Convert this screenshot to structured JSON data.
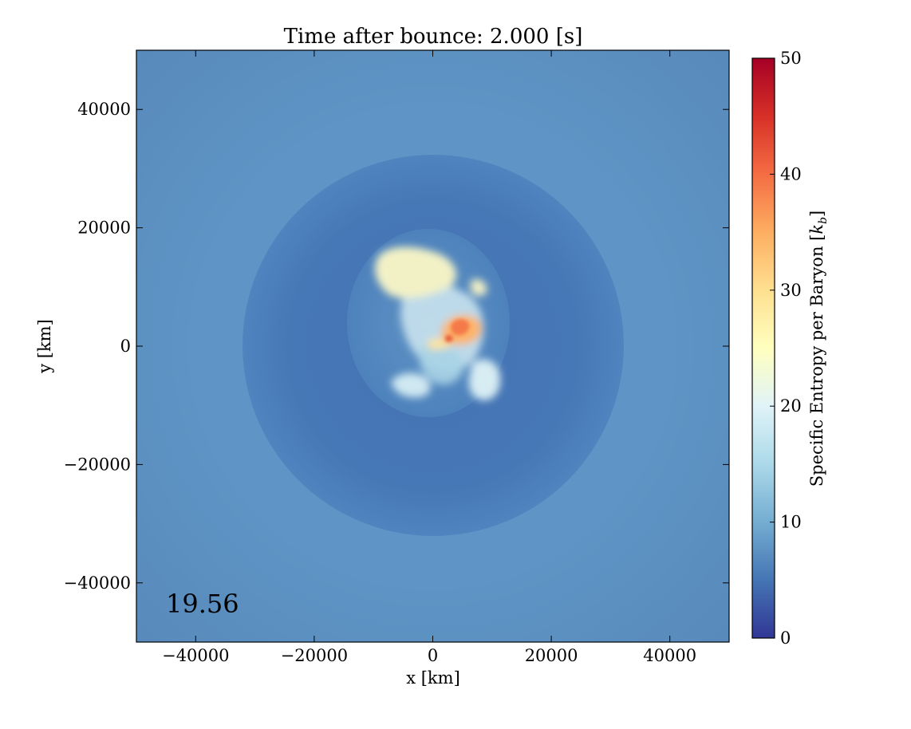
{
  "chart_data": {
    "type": "heatmap",
    "title": "Time after bounce: 2.000 [s]",
    "xlabel": "x [km]",
    "ylabel": "y [km]",
    "xlim": [
      -50000,
      50000
    ],
    "ylim": [
      -50000,
      50000
    ],
    "xticks": [
      -40000,
      -20000,
      0,
      20000,
      40000
    ],
    "yticks": [
      -40000,
      -20000,
      0,
      20000,
      40000
    ],
    "xtick_labels": [
      "−40000",
      "−20000",
      "0",
      "20000",
      "40000"
    ],
    "ytick_labels": [
      "−40000",
      "−20000",
      "0",
      "20000",
      "40000"
    ],
    "annotation": "19.56",
    "grid": false,
    "colorbar": {
      "label": "Specific Entropy per Baryon [k_b]",
      "label_main": "Specific Entropy per Baryon [",
      "label_symbol": "k",
      "label_subscript": "b",
      "label_close": "]",
      "range": [
        0,
        50
      ],
      "ticks": [
        0,
        10,
        20,
        30,
        40,
        50
      ],
      "tick_labels": [
        "0",
        "10",
        "20",
        "30",
        "40",
        "50"
      ],
      "colormap": "RdYlBu_r",
      "stops": [
        "#313695",
        "#4575b4",
        "#74add1",
        "#abd9e9",
        "#e0f3f8",
        "#ffffbf",
        "#fee090",
        "#fdae61",
        "#f46d43",
        "#d73027",
        "#a50026"
      ]
    },
    "field_features": [
      {
        "name": "outer ambient",
        "radius_km": 50000,
        "entropy": 8.5
      },
      {
        "name": "shell",
        "radius_km": 32000,
        "entropy": 6.5
      },
      {
        "name": "inner cavity",
        "center_km": [
          -2000,
          2000
        ],
        "radius_km": 14000,
        "entropy": 7.5
      },
      {
        "name": "upper-left bubble",
        "center_km": [
          -4500,
          12000
        ],
        "entropy": 24
      },
      {
        "name": "central plume",
        "center_km": [
          0,
          2000
        ],
        "entropy": 15
      },
      {
        "name": "hot knot",
        "center_km": [
          3500,
          2500
        ],
        "entropy": 37
      },
      {
        "name": "lower-left blob",
        "center_km": [
          -4000,
          -6500
        ],
        "entropy": 18
      },
      {
        "name": "lower-right blob",
        "center_km": [
          8500,
          -6000
        ],
        "entropy": 17
      }
    ]
  }
}
